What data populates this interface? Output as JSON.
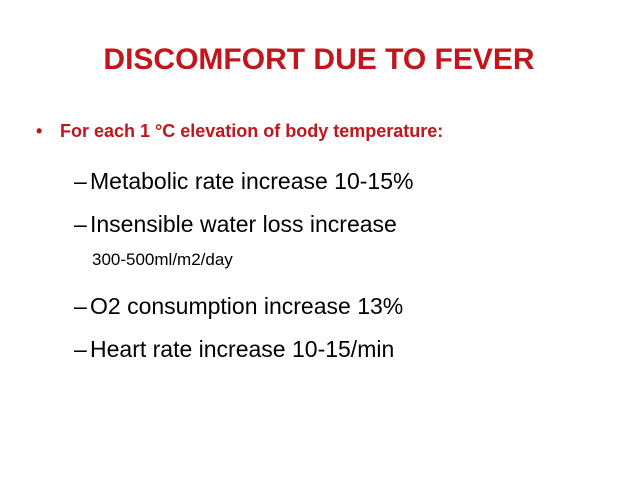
{
  "slide": {
    "title": "DISCOMFORT DUE TO FEVER",
    "bullet_marker": "•",
    "bullet": "For each 1 °C elevation of body temperature:",
    "dash": "–",
    "items": [
      {
        "text": "Metabolic rate increase 10-15%"
      },
      {
        "text": "Insensible water loss increase",
        "continuation": "300-500ml/m2/day"
      },
      {
        "text": "O2 consumption increase 13%"
      },
      {
        "text": "Heart rate increase 10-15/min"
      }
    ]
  },
  "colors": {
    "title": "#c0161c",
    "bullet": "#c0161c",
    "body": "#000000",
    "background": "#ffffff"
  }
}
